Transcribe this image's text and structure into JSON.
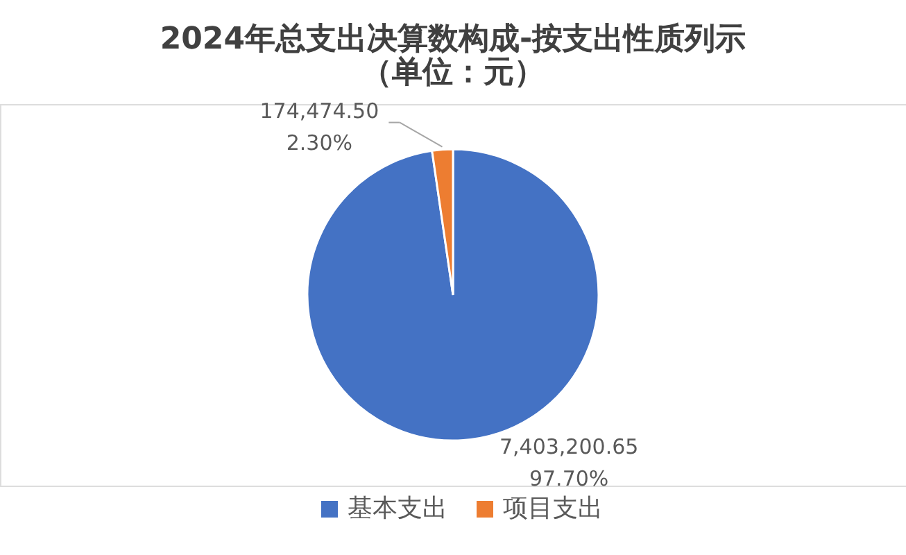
{
  "chart_data": {
    "type": "pie",
    "title": "2024年总支出决算数构成-按支出性质列示",
    "subtitle": "（单位：元）",
    "categories": [
      "基本支出",
      "项目支出"
    ],
    "values": [
      7403200.65,
      174474.5
    ],
    "colors": [
      "#4472c4",
      "#ed7d31"
    ],
    "value_labels": [
      "7,403,200.65\n97.70%",
      "174,474.50\n2.30%"
    ],
    "legend": "bottom"
  }
}
